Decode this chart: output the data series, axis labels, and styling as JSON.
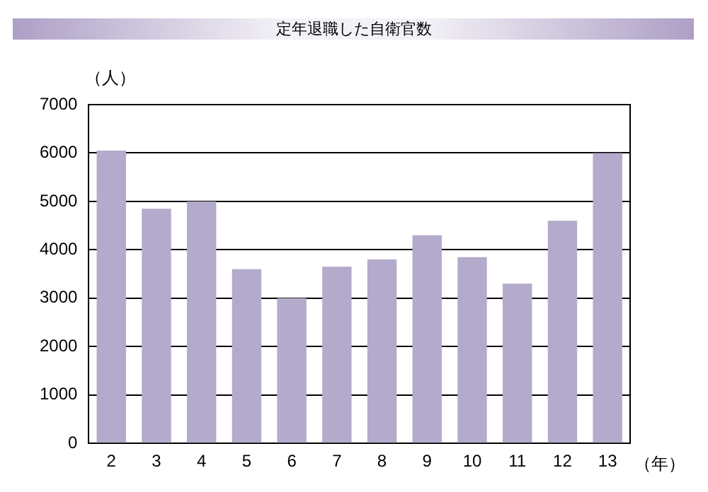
{
  "chart_data": {
    "type": "bar",
    "title": "定年退職した自衛官数",
    "xlabel": "（年）",
    "ylabel": "（人）",
    "categories": [
      "2",
      "3",
      "4",
      "5",
      "6",
      "7",
      "8",
      "9",
      "10",
      "11",
      "12",
      "13"
    ],
    "values": [
      6050,
      4850,
      5000,
      3600,
      3000,
      3650,
      3800,
      4300,
      3850,
      3300,
      4600,
      6000
    ],
    "color": "#b4aacb",
    "ylim": [
      0,
      7000
    ],
    "yticks": [
      0,
      1000,
      2000,
      3000,
      4000,
      5000,
      6000,
      7000
    ],
    "grid": "y"
  }
}
